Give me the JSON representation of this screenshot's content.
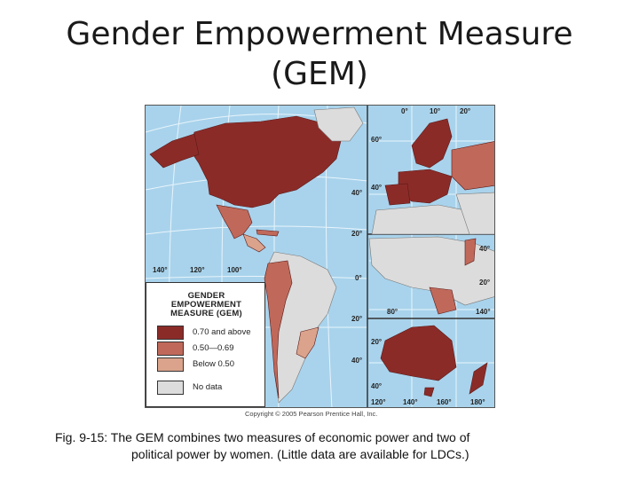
{
  "slide": {
    "title_line1": "Gender Empowerment Measure",
    "title_line2": "(GEM)"
  },
  "legend": {
    "title": [
      "GENDER",
      "EMPOWERMENT",
      "MEASURE (GEM)"
    ],
    "items": [
      {
        "label": "0.70 and above",
        "color": "#8b2b28"
      },
      {
        "label": "0.50—0.69",
        "color": "#c0695a"
      },
      {
        "label": "Below 0.50",
        "color": "#dba38c"
      },
      {
        "label": "No data",
        "color": "#dcdcdc"
      }
    ]
  },
  "map_colors": {
    "ocean": "#a9d3ec",
    "high": "#8b2b28",
    "medium": "#c0695a",
    "low": "#dba38c",
    "nodata": "#dcdcdc"
  },
  "graticule_labels": {
    "longitudes_bottom": [
      "140°",
      "120°",
      "100°"
    ],
    "europe_top": [
      "0°",
      "10°",
      "20°"
    ],
    "latitudes_left_panel": [
      "40°",
      "20°",
      "0°",
      "20°",
      "40°"
    ],
    "europe_lats": [
      "60°",
      "40°"
    ],
    "asia_lats": [
      "40°",
      "20°"
    ],
    "asia_lons": [
      "80°",
      "140°"
    ],
    "australia_lats": [
      "20°",
      "40°"
    ],
    "australia_lons": [
      "120°",
      "140°",
      "160°",
      "180°"
    ]
  },
  "copyright": "Copyright © 2005 Pearson Prentice Hall, Inc.",
  "caption": {
    "line1": "Fig. 9-15: The GEM combines two measures of economic power and two of",
    "line2": "political power by women. (Little data are available for LDCs.)"
  }
}
